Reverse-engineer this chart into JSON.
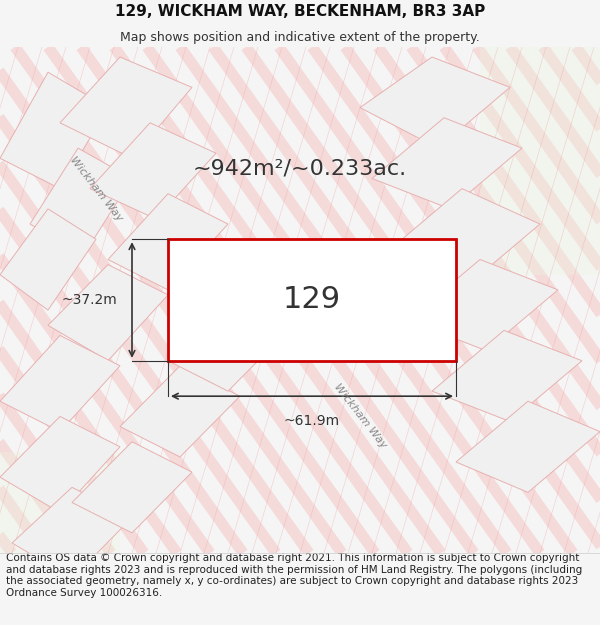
{
  "title": "129, WICKHAM WAY, BECKENHAM, BR3 3AP",
  "subtitle": "Map shows position and indicative extent of the property.",
  "area_text": "~942m²/~0.233ac.",
  "plot_number": "129",
  "dim_width": "~61.9m",
  "dim_height": "~37.2m",
  "footer_text": "Contains OS data © Crown copyright and database right 2021. This information is subject to Crown copyright and database rights 2023 and is reproduced with the permission of HM Land Registry. The polygons (including the associated geometry, namely x, y co-ordinates) are subject to Crown copyright and database rights 2023 Ordnance Survey 100026316.",
  "bg_color": "#f5f5f5",
  "map_bg": "#ffffff",
  "street_color": "#f5c0c0",
  "plot_fill": "#ffffff",
  "plot_edge_color": "#cc0000",
  "block_fill": "#f0f0f0",
  "block_edge": "#e8b0b0",
  "road_label": "Wickham Way",
  "title_fontsize": 11,
  "subtitle_fontsize": 9,
  "footer_fontsize": 7.5
}
